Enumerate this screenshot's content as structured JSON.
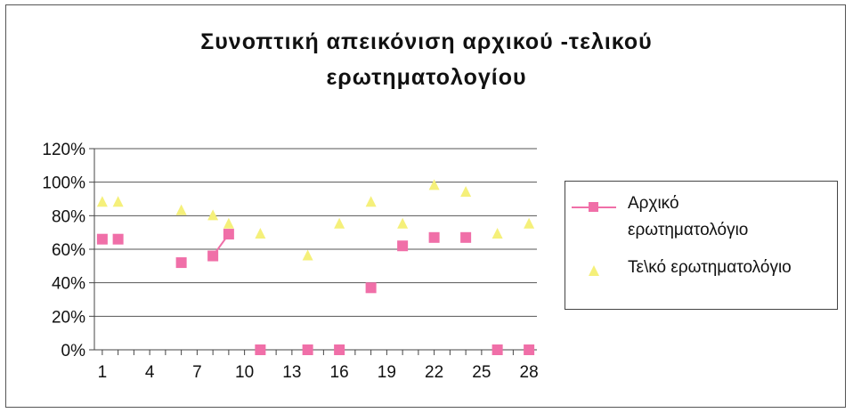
{
  "chart_data": {
    "type": "scatter",
    "title_lines": [
      "Συνοπτική απεικόνιση αρχικού -τελικού",
      "ερωτηματολογίου"
    ],
    "x_tick_labels": [
      "1",
      "4",
      "7",
      "10",
      "13",
      "16",
      "19",
      "22",
      "25",
      "28"
    ],
    "y_tick_labels": [
      "0%",
      "20%",
      "40%",
      "60%",
      "80%",
      "100%",
      "120%"
    ],
    "ylim": [
      0,
      120
    ],
    "xlim": [
      0.5,
      28.5
    ],
    "grid": "horizontal",
    "legend_position": "right",
    "series": [
      {
        "name": "Αρχικό ερωτηματολόγιο",
        "name_lines": [
          "Αρχικό",
          "ερωτηματολόγιο"
        ],
        "color": "#f06fa8",
        "marker": "square",
        "points": [
          [
            1,
            66
          ],
          [
            2,
            66
          ],
          [
            6,
            52
          ],
          [
            8,
            56
          ],
          [
            9,
            69
          ],
          [
            11,
            0
          ],
          [
            14,
            0
          ],
          [
            16,
            0
          ],
          [
            18,
            37
          ],
          [
            20,
            62
          ],
          [
            22,
            67
          ],
          [
            24,
            67
          ],
          [
            26,
            0
          ],
          [
            28,
            0
          ]
        ],
        "connected_segment": [
          [
            8,
            56
          ],
          [
            9,
            69
          ]
        ]
      },
      {
        "name": "Τελικό ερωτηματολόγιο",
        "legend_label": "Τε\\κό ερωτηματολόγιο",
        "color": "#f5f07a",
        "marker": "triangle",
        "points": [
          [
            1,
            88
          ],
          [
            2,
            88
          ],
          [
            6,
            83
          ],
          [
            8,
            80
          ],
          [
            9,
            75
          ],
          [
            11,
            69
          ],
          [
            14,
            56
          ],
          [
            16,
            75
          ],
          [
            18,
            88
          ],
          [
            20,
            75
          ],
          [
            22,
            98
          ],
          [
            24,
            94
          ],
          [
            26,
            69
          ],
          [
            28,
            75
          ]
        ]
      }
    ]
  }
}
